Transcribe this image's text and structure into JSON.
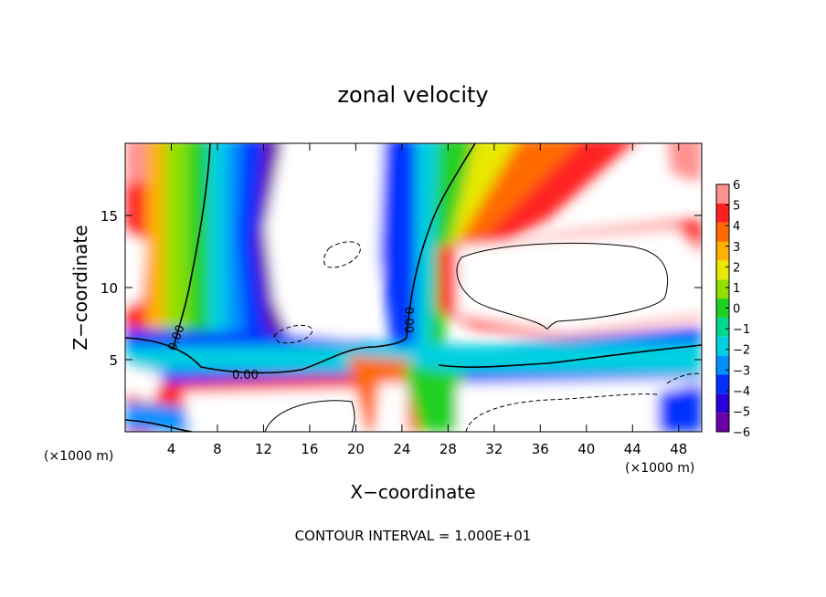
{
  "chart_data": {
    "type": "heatmap",
    "title": "zonal velocity",
    "xlabel": "X−coordinate",
    "ylabel": "Z−coordinate",
    "x_unit_left": "(×1000 m)",
    "x_unit_right": "(×1000 m)",
    "xlim": [
      0,
      50
    ],
    "ylim": [
      0,
      20
    ],
    "x_ticks": [
      4,
      8,
      12,
      16,
      20,
      24,
      28,
      32,
      36,
      40,
      44,
      48
    ],
    "y_ticks": [
      5,
      10,
      15
    ],
    "colorbar": {
      "min": -6,
      "max": 6,
      "ticks": [
        6,
        5,
        4,
        3,
        2,
        1,
        0,
        -1,
        -2,
        -3,
        -4,
        -5,
        -6
      ],
      "tick_labels": [
        "6",
        "5",
        "4",
        "3",
        "2",
        "1",
        "0",
        "−1",
        "−2",
        "−3",
        "−4",
        "−5",
        "−6"
      ],
      "colors": [
        "#6a00a8",
        "#2a00d8",
        "#0030ff",
        "#0090ff",
        "#00d0e0",
        "#00d890",
        "#20d020",
        "#90e000",
        "#e8e800",
        "#ffb000",
        "#ff6a00",
        "#ff2020",
        "#ff9090"
      ]
    },
    "contour_labels": [
      {
        "text": "0.00",
        "x": 6.0,
        "z": 6.8
      },
      {
        "text": "0.00",
        "x": 11.0,
        "z": 4.1
      },
      {
        "text": "0.00",
        "x": 24.0,
        "z": 7.9
      }
    ],
    "contour_interval_text": "CONTOUR INTERVAL = 1.000E+01",
    "notes": "values clipped outside ±6 shown white"
  }
}
